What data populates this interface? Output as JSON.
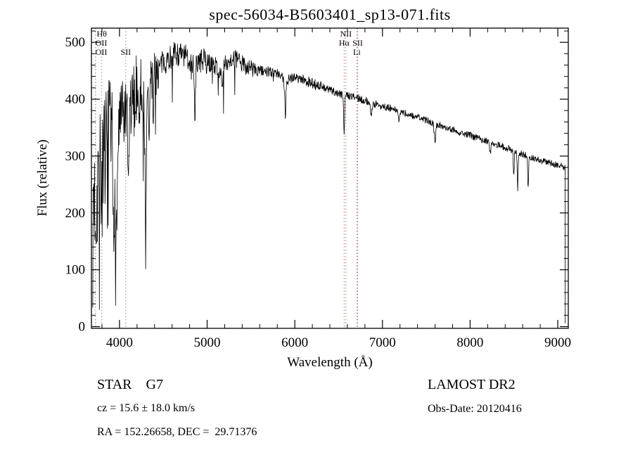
{
  "title": "spec-56034-B5603401_sp13-071.fits",
  "annotations": {
    "class_line": "STAR    G7",
    "survey": "LAMOST DR2",
    "cz_line": "cz = 15.6 ± 18.0 km/s",
    "obs_date": "Obs-Date: 20120416",
    "radec_line": "RA = 152.26658, DEC =  29.71376"
  },
  "chart_data": {
    "type": "line",
    "title": "spec-56034-B5603401_sp13-071.fits",
    "xlabel": "Wavelength (Å)",
    "ylabel": "Flux (relative)",
    "xlim": [
      3680,
      9120
    ],
    "ylim": [
      -3,
      525
    ],
    "xticks": [
      4000,
      5000,
      6000,
      7000,
      8000,
      9000
    ],
    "yticks": [
      0,
      100,
      200,
      300,
      400,
      500
    ],
    "x_minor_step": 200,
    "y_minor_step": 20,
    "grid": false,
    "legend": "none",
    "line_color": "#000000",
    "marker_color": "#b07a7a",
    "line_markers": [
      {
        "label": "Hθ",
        "wavelength": 3798,
        "row": 0
      },
      {
        "label": "OII",
        "wavelength": 3727,
        "row": 1
      },
      {
        "label": "OII",
        "wavelength": 3727,
        "row": 2
      },
      {
        "label": "SII",
        "wavelength": 4072,
        "row": 2
      },
      {
        "label": "NII",
        "wavelength": 6583,
        "row": 0
      },
      {
        "label": "Hα",
        "wavelength": 6563,
        "row": 1
      },
      {
        "label": "SII",
        "wavelength": 6717,
        "row": 1
      },
      {
        "label": "Li",
        "wavelength": 6708,
        "row": 2
      }
    ],
    "spectrum": {
      "sample_step": 4,
      "noise_seed": 7,
      "cutoff": [
        9083,
        6
      ],
      "continuum": [
        [
          3695,
          200
        ],
        [
          3700,
          250
        ],
        [
          3730,
          205
        ],
        [
          3760,
          280
        ],
        [
          3800,
          260
        ],
        [
          3840,
          300
        ],
        [
          3880,
          320
        ],
        [
          3920,
          310
        ],
        [
          3960,
          330
        ],
        [
          4000,
          355
        ],
        [
          4040,
          370
        ],
        [
          4080,
          365
        ],
        [
          4120,
          380
        ],
        [
          4160,
          395
        ],
        [
          4200,
          420
        ],
        [
          4240,
          430
        ],
        [
          4270,
          400
        ],
        [
          4300,
          370
        ],
        [
          4330,
          420
        ],
        [
          4360,
          440
        ],
        [
          4400,
          450
        ],
        [
          4450,
          455
        ],
        [
          4500,
          465
        ],
        [
          4550,
          470
        ],
        [
          4600,
          478
        ],
        [
          4650,
          480
        ],
        [
          4700,
          478
        ],
        [
          4750,
          475
        ],
        [
          4800,
          470
        ],
        [
          4850,
          455
        ],
        [
          4900,
          465
        ],
        [
          4950,
          468
        ],
        [
          5000,
          465
        ],
        [
          5050,
          462
        ],
        [
          5100,
          458
        ],
        [
          5150,
          450
        ],
        [
          5200,
          462
        ],
        [
          5250,
          468
        ],
        [
          5300,
          472
        ],
        [
          5350,
          468
        ],
        [
          5400,
          462
        ],
        [
          5450,
          458
        ],
        [
          5500,
          455
        ],
        [
          5550,
          452
        ],
        [
          5600,
          450
        ],
        [
          5650,
          449
        ],
        [
          5700,
          448
        ],
        [
          5750,
          446
        ],
        [
          5800,
          444
        ],
        [
          5850,
          438
        ],
        [
          5900,
          432
        ],
        [
          5950,
          438
        ],
        [
          6000,
          440
        ],
        [
          6050,
          437
        ],
        [
          6100,
          434
        ],
        [
          6150,
          431
        ],
        [
          6200,
          428
        ],
        [
          6250,
          425
        ],
        [
          6300,
          422
        ],
        [
          6350,
          419
        ],
        [
          6400,
          416
        ],
        [
          6450,
          413
        ],
        [
          6500,
          410
        ],
        [
          6550,
          408
        ],
        [
          6600,
          407
        ],
        [
          6650,
          405
        ],
        [
          6700,
          403
        ],
        [
          6750,
          400
        ],
        [
          6800,
          398
        ],
        [
          6850,
          395
        ],
        [
          6900,
          392
        ],
        [
          6950,
          390
        ],
        [
          7000,
          388
        ],
        [
          7100,
          383
        ],
        [
          7200,
          378
        ],
        [
          7300,
          373
        ],
        [
          7400,
          368
        ],
        [
          7500,
          363
        ],
        [
          7600,
          357
        ],
        [
          7700,
          352
        ],
        [
          7800,
          347
        ],
        [
          7900,
          341
        ],
        [
          8000,
          336
        ],
        [
          8100,
          331
        ],
        [
          8200,
          326
        ],
        [
          8300,
          321
        ],
        [
          8400,
          315
        ],
        [
          8500,
          309
        ],
        [
          8600,
          303
        ],
        [
          8700,
          298
        ],
        [
          8800,
          293
        ],
        [
          8900,
          288
        ],
        [
          9000,
          284
        ],
        [
          9083,
          280
        ]
      ],
      "absorption_features": [
        [
          3934,
          200,
          8
        ],
        [
          3968,
          160,
          8
        ],
        [
          4101,
          130,
          7
        ],
        [
          4227,
          70,
          5
        ],
        [
          4300,
          160,
          8
        ],
        [
          4340,
          100,
          6
        ],
        [
          4383,
          70,
          5
        ],
        [
          4861,
          80,
          6
        ],
        [
          5172,
          45,
          8
        ],
        [
          5890,
          45,
          7
        ],
        [
          6563,
          70,
          5
        ],
        [
          6870,
          25,
          8
        ],
        [
          7190,
          15,
          8
        ],
        [
          7600,
          30,
          9
        ],
        [
          8230,
          20,
          8
        ],
        [
          8498,
          45,
          5
        ],
        [
          8542,
          65,
          5
        ],
        [
          8662,
          60,
          5
        ]
      ],
      "noise_regions": [
        [
          3680,
          3960,
          115
        ],
        [
          3960,
          4200,
          65
        ],
        [
          4200,
          4450,
          45
        ],
        [
          4450,
          5000,
          22
        ],
        [
          5000,
          5600,
          16
        ],
        [
          5600,
          6300,
          10
        ],
        [
          6300,
          7200,
          7
        ],
        [
          7200,
          9120,
          6
        ]
      ],
      "spike_regions": [
        [
          3690,
          3970,
          0.12,
          150
        ],
        [
          3970,
          4450,
          0.06,
          70
        ],
        [
          4450,
          5500,
          0.035,
          55
        ],
        [
          5500,
          6000,
          0.02,
          30
        ]
      ]
    }
  }
}
